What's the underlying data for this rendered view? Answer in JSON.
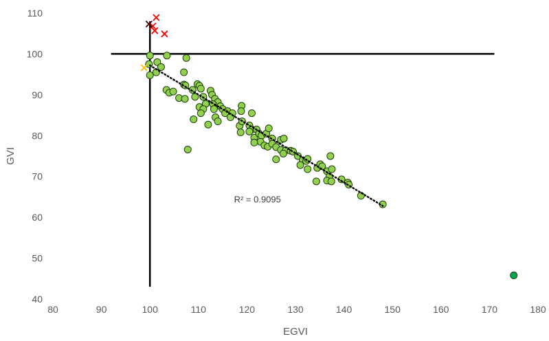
{
  "chart_data": {
    "type": "scatter",
    "xlabel": "EGVI",
    "ylabel": "GVI",
    "xlim": [
      80,
      180
    ],
    "ylim": [
      40,
      110
    ],
    "x_ticks": [
      80,
      90,
      100,
      110,
      120,
      130,
      140,
      150,
      160,
      170,
      180
    ],
    "y_ticks": [
      40,
      50,
      60,
      70,
      80,
      90,
      100,
      110
    ],
    "grid": false,
    "legend": "none",
    "annotations": [
      {
        "text": "R² = 0.9095",
        "x": 123,
        "y": 64.5
      }
    ],
    "reference_lines": [
      {
        "orientation": "horizontal",
        "y": 100,
        "x_from": 92,
        "x_to": 171
      },
      {
        "orientation": "vertical",
        "x": 100,
        "y_from": 43,
        "y_to": 108
      }
    ],
    "series": [
      {
        "marker": "circle",
        "color": "#92d050",
        "edge_color": "#1f3d0c",
        "points": [
          [
            100,
            99.6
          ],
          [
            103.5,
            99.6
          ],
          [
            99.8,
            97.5
          ],
          [
            101.5,
            98
          ],
          [
            102.3,
            96.8
          ],
          [
            101.3,
            95.5
          ],
          [
            100,
            94.8
          ],
          [
            107.5,
            99
          ],
          [
            107,
            95.5
          ],
          [
            107,
            92.5
          ],
          [
            107.3,
            92.3
          ],
          [
            109.8,
            92.6
          ],
          [
            110.2,
            92.2
          ],
          [
            110.5,
            91.5
          ],
          [
            108.8,
            91.2
          ],
          [
            112.5,
            91
          ],
          [
            103.4,
            91.2
          ],
          [
            104,
            90.5
          ],
          [
            104.8,
            90.8
          ],
          [
            106,
            89.2
          ],
          [
            107.2,
            89
          ],
          [
            109.3,
            89.5
          ],
          [
            111,
            89.5
          ],
          [
            112.8,
            90
          ],
          [
            113.4,
            89
          ],
          [
            114,
            88.2
          ],
          [
            113,
            87.7
          ],
          [
            111.5,
            87.8
          ],
          [
            110.2,
            87
          ],
          [
            111,
            86.5
          ],
          [
            110.5,
            85.5
          ],
          [
            113.2,
            86.5
          ],
          [
            114.5,
            87.2
          ],
          [
            115,
            86.5
          ],
          [
            116,
            86
          ],
          [
            115.5,
            85.5
          ],
          [
            117,
            85.5
          ],
          [
            118.9,
            87.3
          ],
          [
            118.8,
            86
          ],
          [
            121,
            85.5
          ],
          [
            109,
            84
          ],
          [
            113.5,
            84.5
          ],
          [
            114,
            83.5
          ],
          [
            112,
            82.7
          ],
          [
            116.6,
            84.5
          ],
          [
            118.5,
            82.4
          ],
          [
            119,
            83.5
          ],
          [
            120.5,
            82.5
          ],
          [
            121,
            81.5
          ],
          [
            118.7,
            80.8
          ],
          [
            120.5,
            81
          ],
          [
            122,
            81.5
          ],
          [
            121.5,
            79.5
          ],
          [
            122.5,
            80.5
          ],
          [
            123,
            80
          ],
          [
            124,
            80.5
          ],
          [
            124.5,
            81.8
          ],
          [
            125.2,
            79.3
          ],
          [
            122.8,
            78.5
          ],
          [
            121.5,
            78.3
          ],
          [
            123.6,
            77.6
          ],
          [
            124.3,
            77.3
          ],
          [
            125.2,
            78
          ],
          [
            127,
            79
          ],
          [
            127.6,
            79.3
          ],
          [
            126,
            77.2
          ],
          [
            127,
            76.5
          ],
          [
            128,
            76.4
          ],
          [
            129,
            76.3
          ],
          [
            129.5,
            76.1
          ],
          [
            127.5,
            75.6
          ],
          [
            126,
            74.2
          ],
          [
            130.5,
            75
          ],
          [
            131.5,
            74
          ],
          [
            132.2,
            73.8
          ],
          [
            132.5,
            74.3
          ],
          [
            131,
            72.8
          ],
          [
            132.5,
            71.8
          ],
          [
            134.5,
            72.1
          ],
          [
            135.1,
            73
          ],
          [
            135.5,
            72.5
          ],
          [
            136.5,
            71.3
          ],
          [
            137.2,
            75
          ],
          [
            137.5,
            71.8
          ],
          [
            137,
            70
          ],
          [
            136.5,
            69
          ],
          [
            137.4,
            68.8
          ],
          [
            134.3,
            68.8
          ],
          [
            139.5,
            69.3
          ],
          [
            140.8,
            68.5
          ],
          [
            141,
            68
          ],
          [
            143.5,
            65.3
          ],
          [
            148,
            63.2
          ],
          [
            107.8,
            76.6
          ]
        ]
      },
      {
        "marker": "circle",
        "color": "#00a651",
        "edge_color": "#1f3d0c",
        "points": [
          [
            175,
            45.8
          ]
        ]
      },
      {
        "marker": "x",
        "color": "#ff0000",
        "points": [
          [
            101.3,
            108.9
          ],
          [
            100.6,
            106.8
          ],
          [
            101,
            105.7
          ],
          [
            103,
            104.9
          ]
        ]
      },
      {
        "marker": "x",
        "color": "#3d0000",
        "points": [
          [
            99.8,
            107.3
          ]
        ]
      },
      {
        "marker": "x",
        "color": "#ffc000",
        "points": [
          [
            98.8,
            96.6
          ]
        ]
      }
    ],
    "trendline": {
      "style": "dotted",
      "color": "#000000",
      "points": [
        [
          100,
          97.2
        ],
        [
          148,
          62.8
        ]
      ]
    }
  }
}
